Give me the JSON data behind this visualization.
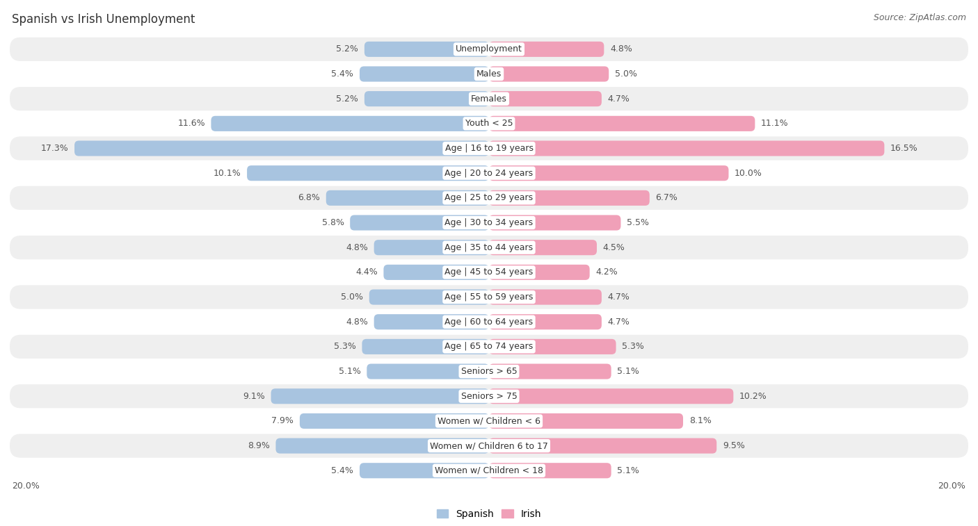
{
  "title": "Spanish vs Irish Unemployment",
  "source": "Source: ZipAtlas.com",
  "categories": [
    "Unemployment",
    "Males",
    "Females",
    "Youth < 25",
    "Age | 16 to 19 years",
    "Age | 20 to 24 years",
    "Age | 25 to 29 years",
    "Age | 30 to 34 years",
    "Age | 35 to 44 years",
    "Age | 45 to 54 years",
    "Age | 55 to 59 years",
    "Age | 60 to 64 years",
    "Age | 65 to 74 years",
    "Seniors > 65",
    "Seniors > 75",
    "Women w/ Children < 6",
    "Women w/ Children 6 to 17",
    "Women w/ Children < 18"
  ],
  "spanish": [
    5.2,
    5.4,
    5.2,
    11.6,
    17.3,
    10.1,
    6.8,
    5.8,
    4.8,
    4.4,
    5.0,
    4.8,
    5.3,
    5.1,
    9.1,
    7.9,
    8.9,
    5.4
  ],
  "irish": [
    4.8,
    5.0,
    4.7,
    11.1,
    16.5,
    10.0,
    6.7,
    5.5,
    4.5,
    4.2,
    4.7,
    4.7,
    5.3,
    5.1,
    10.2,
    8.1,
    9.5,
    5.1
  ],
  "spanish_color": "#a8c4e0",
  "irish_color": "#f0a0b8",
  "bar_height": 0.62,
  "max_val": 20.0,
  "bg_row_light": "#efefef",
  "bg_row_white": "#ffffff",
  "label_fontsize": 9.0,
  "value_fontsize": 9.0,
  "title_fontsize": 12,
  "source_fontsize": 9,
  "axis_label_fontsize": 9
}
